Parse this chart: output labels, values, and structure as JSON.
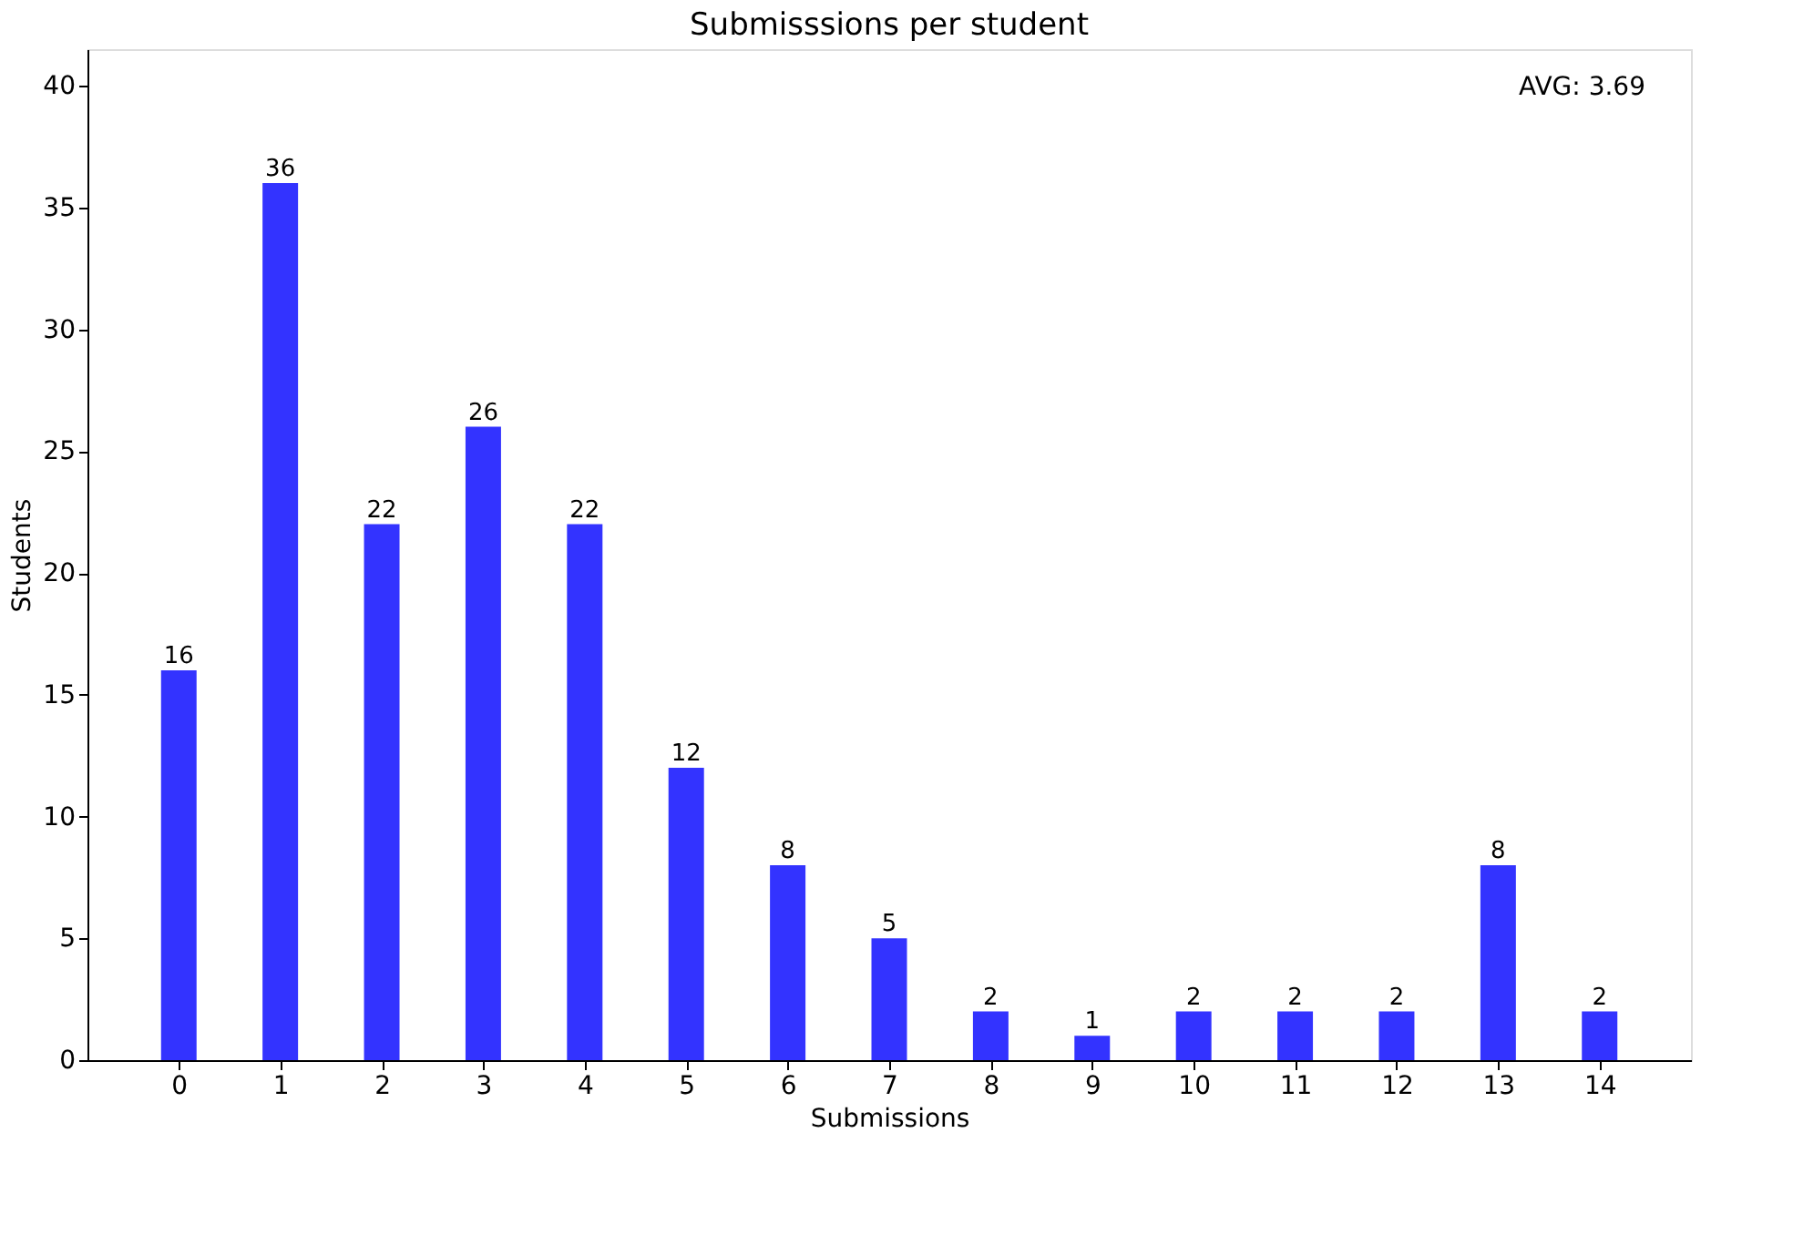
{
  "chart_data": {
    "type": "bar",
    "title": "Submisssions per student",
    "xlabel": "Submissions",
    "ylabel": "Students",
    "x": [
      0,
      1,
      2,
      3,
      4,
      5,
      6,
      7,
      8,
      9,
      10,
      11,
      12,
      13,
      14
    ],
    "values": [
      16,
      36,
      22,
      26,
      22,
      12,
      8,
      5,
      2,
      1,
      2,
      2,
      2,
      8,
      2
    ],
    "color": "#3333ff",
    "xlim": [
      -0.9,
      14.9
    ],
    "xticks": [
      0,
      1,
      2,
      3,
      4,
      5,
      6,
      7,
      8,
      9,
      10,
      11,
      12,
      13,
      14
    ],
    "ylim": [
      0,
      41.5
    ],
    "yticks": [
      0,
      5,
      10,
      15,
      20,
      25,
      30,
      35,
      40
    ],
    "data_labels": true,
    "grid": false,
    "annotations": [
      "AVG: 3.69"
    ]
  }
}
